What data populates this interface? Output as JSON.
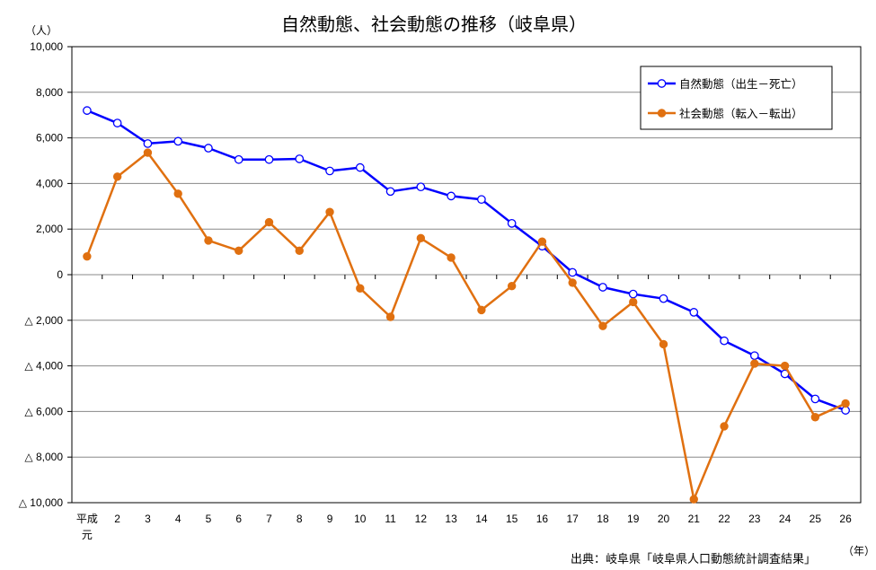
{
  "chart_data": {
    "type": "line",
    "title": "自然動態、社会動態の推移（岐阜県）",
    "y_unit": "（人）",
    "x_unit": "（年）",
    "source": "出典：岐阜県「岐阜県人口動態統計調査結果」",
    "categories": [
      "平成元",
      "2",
      "3",
      "4",
      "5",
      "6",
      "7",
      "8",
      "9",
      "10",
      "11",
      "12",
      "13",
      "14",
      "15",
      "16",
      "17",
      "18",
      "19",
      "20",
      "21",
      "22",
      "23",
      "24",
      "25",
      "26"
    ],
    "ylim": [
      -10000,
      10000
    ],
    "y_ticks": [
      10000,
      8000,
      6000,
      4000,
      2000,
      0,
      -2000,
      -4000,
      -6000,
      -8000,
      -10000
    ],
    "y_tick_labels": [
      "10,000",
      "8,000",
      "6,000",
      "4,000",
      "2,000",
      "0",
      "△ 2,000",
      "△ 4,000",
      "△ 6,000",
      "△ 8,000",
      "△ 10,000"
    ],
    "grid": true,
    "legend_position": "top-right",
    "series": [
      {
        "name": "自然動態（出生－死亡）",
        "color": "#0000ff",
        "marker": "open-circle",
        "values": [
          7200,
          6650,
          5750,
          5850,
          5550,
          5050,
          5050,
          5080,
          4550,
          4700,
          3650,
          3850,
          3450,
          3300,
          2250,
          1250,
          100,
          -550,
          -850,
          -1050,
          -1650,
          -2900,
          -3550,
          -4350,
          -5450,
          -5950
        ]
      },
      {
        "name": "社会動態（転入－転出）",
        "color": "#e07010",
        "marker": "filled-circle",
        "values": [
          800,
          4300,
          5350,
          3550,
          1500,
          1050,
          2300,
          1050,
          2750,
          -600,
          -1850,
          1600,
          750,
          -1550,
          -500,
          1450,
          -350,
          -2250,
          -1200,
          -3050,
          -9850,
          -6650,
          -3900,
          -4000,
          -6250,
          -5650
        ]
      }
    ]
  }
}
